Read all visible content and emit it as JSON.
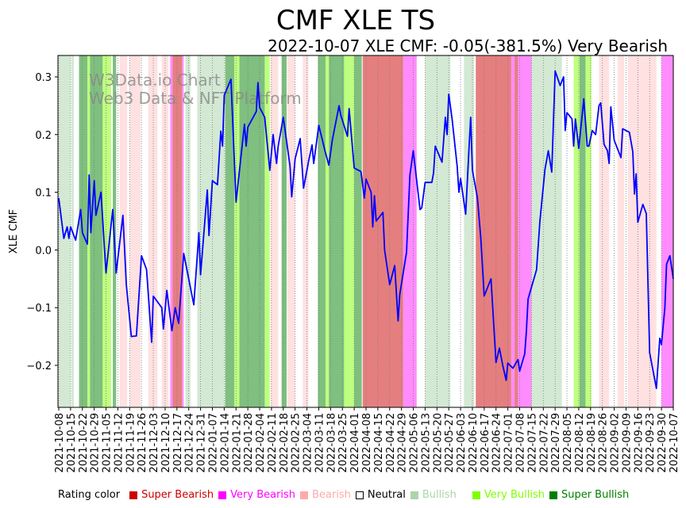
{
  "chart_data": {
    "type": "line",
    "title": "CMF XLE TS",
    "subtitle": "2022-10-07 XLE CMF: -0.05(-381.5%) Very Bearish",
    "xlabel": "",
    "ylabel": "XLE CMF",
    "ylim": [
      -0.27,
      0.337
    ],
    "yticks": [
      0.3,
      0.2,
      0.1,
      0.0,
      -0.1,
      -0.2
    ],
    "ytick_labels": [
      "0.3",
      "0.2",
      "0.1",
      "0.0",
      "−0.1",
      "−0.2"
    ],
    "x_start": "2021-10-08",
    "x_days_span": 364,
    "xtick_labels": [
      "2021-10-08",
      "2021-10-15",
      "2021-10-22",
      "2021-10-29",
      "2021-11-05",
      "2021-11-12",
      "2021-11-19",
      "2021-11-26",
      "2021-12-03",
      "2021-12-10",
      "2021-12-17",
      "2021-12-24",
      "2021-12-31",
      "2022-01-07",
      "2022-01-14",
      "2022-01-21",
      "2022-01-28",
      "2022-02-04",
      "2022-02-11",
      "2022-02-18",
      "2022-02-25",
      "2022-03-04",
      "2022-03-11",
      "2022-03-18",
      "2022-03-25",
      "2022-04-01",
      "2022-04-08",
      "2022-04-15",
      "2022-04-22",
      "2022-04-29",
      "2022-05-06",
      "2022-05-13",
      "2022-05-20",
      "2022-05-27",
      "2022-06-03",
      "2022-06-10",
      "2022-06-17",
      "2022-06-24",
      "2022-07-01",
      "2022-07-08",
      "2022-07-15",
      "2022-07-22",
      "2022-07-29",
      "2022-08-05",
      "2022-08-12",
      "2022-08-19",
      "2022-08-26",
      "2022-09-02",
      "2022-09-09",
      "2022-09-16",
      "2022-09-23",
      "2022-09-30",
      "2022-10-07"
    ],
    "grid": "vertical dotted",
    "series": [
      {
        "name": "XLE CMF",
        "color": "#0000ff",
        "points_day_value": [
          [
            0,
            0.09
          ],
          [
            3,
            0.02
          ],
          [
            5,
            0.04
          ],
          [
            6,
            0.02
          ],
          [
            7,
            0.04
          ],
          [
            10,
            0.017
          ],
          [
            13,
            0.07
          ],
          [
            14,
            0.03
          ],
          [
            17,
            0.01
          ],
          [
            18,
            0.13
          ],
          [
            19,
            0.03
          ],
          [
            21,
            0.12
          ],
          [
            22,
            0.06
          ],
          [
            25,
            0.1
          ],
          [
            28,
            -0.04
          ],
          [
            32,
            0.07
          ],
          [
            34,
            -0.04
          ],
          [
            38,
            0.06
          ],
          [
            40,
            -0.06
          ],
          [
            43,
            -0.15
          ],
          [
            46,
            -0.149
          ],
          [
            49,
            -0.01
          ],
          [
            52,
            -0.034
          ],
          [
            55,
            -0.16
          ],
          [
            56,
            -0.08
          ],
          [
            61,
            -0.1
          ],
          [
            62,
            -0.137
          ],
          [
            64,
            -0.07
          ],
          [
            67,
            -0.14
          ],
          [
            69,
            -0.1
          ],
          [
            71,
            -0.127
          ],
          [
            74,
            -0.006
          ],
          [
            80,
            -0.095
          ],
          [
            83,
            0.03
          ],
          [
            84,
            -0.043
          ],
          [
            88,
            0.104
          ],
          [
            89,
            0.025
          ],
          [
            91,
            0.12
          ],
          [
            94,
            0.113
          ],
          [
            96,
            0.206
          ],
          [
            97,
            0.18
          ],
          [
            98,
            0.268
          ],
          [
            102,
            0.296
          ],
          [
            105,
            0.083
          ],
          [
            110,
            0.218
          ],
          [
            111,
            0.18
          ],
          [
            112,
            0.213
          ],
          [
            117,
            0.24
          ],
          [
            118,
            0.29
          ],
          [
            119,
            0.247
          ],
          [
            122,
            0.23
          ],
          [
            125,
            0.138
          ],
          [
            127,
            0.2
          ],
          [
            129,
            0.15
          ],
          [
            130,
            0.18
          ],
          [
            133,
            0.23
          ],
          [
            137,
            0.145
          ],
          [
            138,
            0.092
          ],
          [
            140,
            0.158
          ],
          [
            143,
            0.193
          ],
          [
            145,
            0.107
          ],
          [
            148,
            0.154
          ],
          [
            150,
            0.182
          ],
          [
            151,
            0.15
          ],
          [
            154,
            0.216
          ],
          [
            158,
            0.168
          ],
          [
            160,
            0.147
          ],
          [
            162,
            0.19
          ],
          [
            166,
            0.25
          ],
          [
            167,
            0.234
          ],
          [
            171,
            0.197
          ],
          [
            172,
            0.245
          ],
          [
            175,
            0.142
          ],
          [
            179,
            0.136
          ],
          [
            181,
            0.09
          ],
          [
            182,
            0.123
          ],
          [
            185,
            0.1
          ],
          [
            186,
            0.04
          ],
          [
            187,
            0.094
          ],
          [
            188,
            0.05
          ],
          [
            192,
            0.065
          ],
          [
            193,
            0.0
          ],
          [
            196,
            -0.06
          ],
          [
            199,
            -0.027
          ],
          [
            201,
            -0.123
          ],
          [
            202,
            -0.077
          ],
          [
            206,
            -0.004
          ],
          [
            208,
            0.13
          ],
          [
            210,
            0.172
          ],
          [
            214,
            0.07
          ],
          [
            215,
            0.073
          ],
          [
            217,
            0.117
          ],
          [
            221,
            0.117
          ],
          [
            222,
            0.134
          ],
          [
            223,
            0.18
          ],
          [
            227,
            0.152
          ],
          [
            229,
            0.23
          ],
          [
            230,
            0.2
          ],
          [
            231,
            0.27
          ],
          [
            233,
            0.227
          ],
          [
            236,
            0.145
          ],
          [
            237,
            0.1
          ],
          [
            238,
            0.124
          ],
          [
            241,
            0.062
          ],
          [
            243,
            0.176
          ],
          [
            244,
            0.23
          ],
          [
            245,
            0.138
          ],
          [
            248,
            0.09
          ],
          [
            250,
            0.02
          ],
          [
            252,
            -0.08
          ],
          [
            256,
            -0.05
          ],
          [
            259,
            -0.195
          ],
          [
            261,
            -0.17
          ],
          [
            263,
            -0.2
          ],
          [
            265,
            -0.226
          ],
          [
            266,
            -0.196
          ],
          [
            269,
            -0.205
          ],
          [
            272,
            -0.19
          ],
          [
            273,
            -0.21
          ],
          [
            276,
            -0.18
          ],
          [
            277,
            -0.14
          ],
          [
            278,
            -0.085
          ],
          [
            283,
            -0.034
          ],
          [
            285,
            0.05
          ],
          [
            288,
            0.14
          ],
          [
            290,
            0.172
          ],
          [
            292,
            0.135
          ],
          [
            294,
            0.31
          ],
          [
            297,
            0.285
          ],
          [
            299,
            0.3
          ],
          [
            300,
            0.207
          ],
          [
            301,
            0.238
          ],
          [
            304,
            0.227
          ],
          [
            305,
            0.18
          ],
          [
            306,
            0.227
          ],
          [
            308,
            0.176
          ],
          [
            311,
            0.262
          ],
          [
            313,
            0.18
          ],
          [
            314,
            0.18
          ],
          [
            316,
            0.207
          ],
          [
            318,
            0.2
          ],
          [
            320,
            0.25
          ],
          [
            321,
            0.255
          ],
          [
            323,
            0.183
          ],
          [
            325,
            0.172
          ],
          [
            326,
            0.15
          ],
          [
            327,
            0.248
          ],
          [
            329,
            0.19
          ],
          [
            333,
            0.16
          ],
          [
            334,
            0.21
          ],
          [
            338,
            0.204
          ],
          [
            340,
            0.17
          ],
          [
            341,
            0.097
          ],
          [
            342,
            0.132
          ],
          [
            343,
            0.048
          ],
          [
            346,
            0.079
          ],
          [
            348,
            0.063
          ],
          [
            350,
            -0.178
          ],
          [
            354,
            -0.24
          ],
          [
            356,
            -0.153
          ],
          [
            357,
            -0.164
          ],
          [
            359,
            -0.1
          ],
          [
            360,
            -0.025
          ],
          [
            362,
            -0.01
          ],
          [
            364,
            -0.05
          ]
        ]
      }
    ],
    "rating_bands_days": [
      [
        0,
        7,
        "bullish"
      ],
      [
        7.5,
        9,
        "bullish"
      ],
      [
        12,
        17,
        "super_bullish"
      ],
      [
        17,
        18.5,
        "very_bullish"
      ],
      [
        18.5,
        26,
        "super_bullish"
      ],
      [
        26,
        31,
        "very_bullish"
      ],
      [
        32,
        34,
        "super_bullish"
      ],
      [
        36,
        40.5,
        "bearish"
      ],
      [
        42,
        48.5,
        "bearish"
      ],
      [
        53,
        58.5,
        "bearish"
      ],
      [
        61,
        65,
        "bearish"
      ],
      [
        66,
        67.5,
        "very_bearish"
      ],
      [
        67.5,
        73,
        "super_bearish"
      ],
      [
        73,
        74,
        "very_bearish"
      ],
      [
        75,
        78,
        "bullish"
      ],
      [
        82,
        98,
        "bullish"
      ],
      [
        98.5,
        104,
        "super_bullish"
      ],
      [
        104,
        107,
        "very_bullish"
      ],
      [
        107,
        122,
        "super_bullish"
      ],
      [
        122,
        125,
        "very_bullish"
      ],
      [
        125.5,
        130,
        "bearish"
      ],
      [
        132,
        135,
        "super_bullish"
      ],
      [
        135.5,
        140,
        "bearish"
      ],
      [
        144.5,
        148,
        "bearish"
      ],
      [
        153.5,
        158,
        "super_bullish"
      ],
      [
        158,
        160,
        "very_bullish"
      ],
      [
        160,
        169,
        "super_bullish"
      ],
      [
        169,
        175,
        "very_bullish"
      ],
      [
        175,
        179.5,
        "super_bullish"
      ],
      [
        180,
        204,
        "super_bearish"
      ],
      [
        204,
        212,
        "very_bearish"
      ],
      [
        217,
        232,
        "bullish"
      ],
      [
        240,
        246,
        "bullish"
      ],
      [
        247,
        268,
        "super_bearish"
      ],
      [
        268,
        270,
        "very_bearish"
      ],
      [
        270,
        272,
        "super_bearish"
      ],
      [
        272,
        280,
        "very_bearish"
      ],
      [
        280,
        298,
        "bullish"
      ],
      [
        305,
        308.5,
        "very_bullish"
      ],
      [
        308.5,
        312,
        "super_bullish"
      ],
      [
        312,
        315.5,
        "very_bullish"
      ],
      [
        320,
        326,
        "bearish"
      ],
      [
        331,
        335,
        "bearish"
      ],
      [
        337,
        354,
        "bearish"
      ],
      [
        357,
        364,
        "very_bearish"
      ]
    ],
    "legend": {
      "placement": "bottom",
      "title": "Rating color",
      "items": [
        {
          "key": "super_bearish",
          "label": "Super Bearish",
          "color": "#cc0000"
        },
        {
          "key": "very_bearish",
          "label": "Very Bearish",
          "color": "#ff00ff"
        },
        {
          "key": "bearish",
          "label": "Bearish",
          "color": "#ffaaaa"
        },
        {
          "key": "neutral",
          "label": "Neutral",
          "color": "#ffffff"
        },
        {
          "key": "bullish",
          "label": "Bullish",
          "color": "#aad4aa"
        },
        {
          "key": "very_bullish",
          "label": "Very Bullish",
          "color": "#80ff00"
        },
        {
          "key": "super_bullish",
          "label": "Super Bullish",
          "color": "#008000"
        }
      ]
    },
    "watermark": [
      "W3Data.io Chart",
      "Web3 Data & NFT Platform"
    ]
  }
}
